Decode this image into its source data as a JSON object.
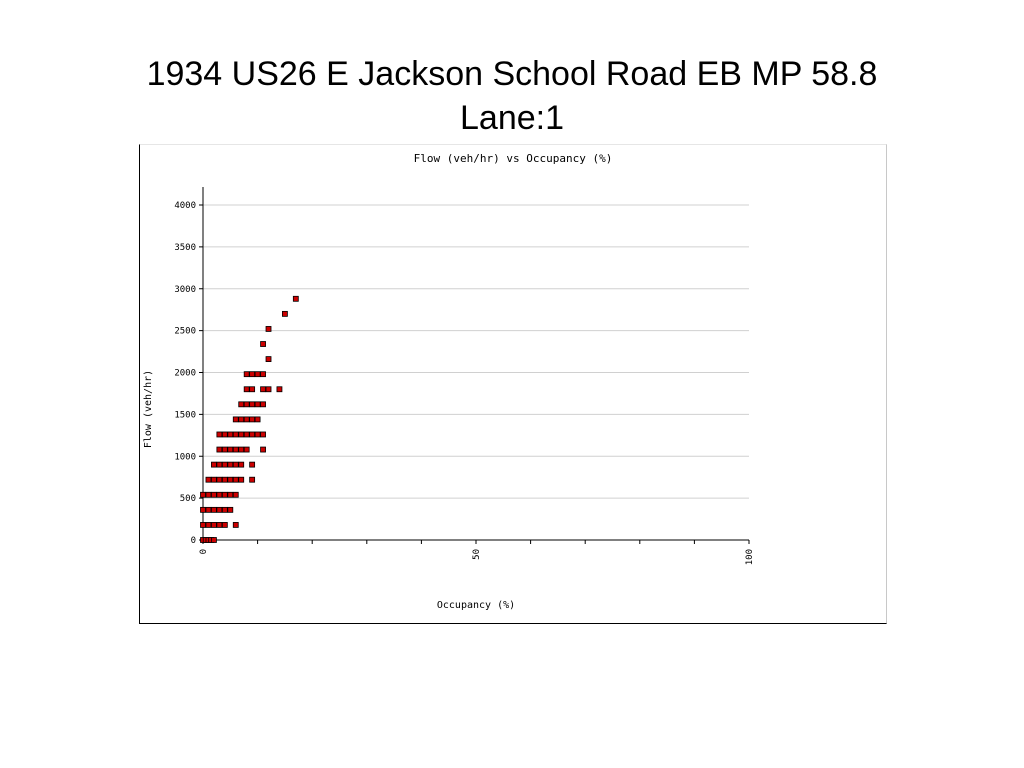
{
  "slide": {
    "title_line1": "1934  US26 E  Jackson School Road EB  MP 58.8",
    "title_line2": "Lane:1"
  },
  "colors": {
    "marker_fill": "#cc0000",
    "marker_edge": "#000000",
    "grid": "#d0d0d0",
    "axis": "#000000"
  },
  "chart_data": {
    "type": "scatter",
    "title": "Flow (veh/hr) vs Occupancy (%)",
    "xlabel": "Occupancy (%)",
    "ylabel": "Flow (veh/hr)",
    "xlim": [
      0,
      100
    ],
    "ylim": [
      0,
      4000
    ],
    "xticks": [
      0,
      50,
      100
    ],
    "yticks": [
      0,
      500,
      1000,
      1500,
      2000,
      2500,
      3000,
      3500,
      4000
    ],
    "grid": "horizontal",
    "legend": "none",
    "series": [
      {
        "points": [
          [
            0,
            0
          ],
          [
            0.5,
            0
          ],
          [
            1,
            0
          ],
          [
            1.5,
            0
          ],
          [
            2,
            0
          ],
          [
            0,
            180
          ],
          [
            1,
            180
          ],
          [
            2,
            180
          ],
          [
            3,
            180
          ],
          [
            4,
            180
          ],
          [
            6,
            180
          ],
          [
            0,
            360
          ],
          [
            1,
            360
          ],
          [
            2,
            360
          ],
          [
            3,
            360
          ],
          [
            4,
            360
          ],
          [
            5,
            360
          ],
          [
            0,
            540
          ],
          [
            1,
            540
          ],
          [
            2,
            540
          ],
          [
            3,
            540
          ],
          [
            4,
            540
          ],
          [
            5,
            540
          ],
          [
            6,
            540
          ],
          [
            1,
            720
          ],
          [
            2,
            720
          ],
          [
            3,
            720
          ],
          [
            4,
            720
          ],
          [
            5,
            720
          ],
          [
            6,
            720
          ],
          [
            7,
            720
          ],
          [
            9,
            720
          ],
          [
            2,
            900
          ],
          [
            3,
            900
          ],
          [
            4,
            900
          ],
          [
            5,
            900
          ],
          [
            6,
            900
          ],
          [
            7,
            900
          ],
          [
            9,
            900
          ],
          [
            3,
            1080
          ],
          [
            4,
            1080
          ],
          [
            5,
            1080
          ],
          [
            6,
            1080
          ],
          [
            7,
            1080
          ],
          [
            8,
            1080
          ],
          [
            11,
            1080
          ],
          [
            3,
            1260
          ],
          [
            4,
            1260
          ],
          [
            5,
            1260
          ],
          [
            6,
            1260
          ],
          [
            7,
            1260
          ],
          [
            8,
            1260
          ],
          [
            9,
            1260
          ],
          [
            10,
            1260
          ],
          [
            11,
            1260
          ],
          [
            6,
            1440
          ],
          [
            7,
            1440
          ],
          [
            8,
            1440
          ],
          [
            9,
            1440
          ],
          [
            10,
            1440
          ],
          [
            7,
            1620
          ],
          [
            8,
            1620
          ],
          [
            9,
            1620
          ],
          [
            10,
            1620
          ],
          [
            11,
            1620
          ],
          [
            8,
            1800
          ],
          [
            9,
            1800
          ],
          [
            11,
            1800
          ],
          [
            12,
            1800
          ],
          [
            14,
            1800
          ],
          [
            8,
            1980
          ],
          [
            9,
            1980
          ],
          [
            10,
            1980
          ],
          [
            11,
            1980
          ],
          [
            12,
            2160
          ],
          [
            11,
            2340
          ],
          [
            12,
            2520
          ],
          [
            15,
            2700
          ],
          [
            17,
            2880
          ]
        ]
      }
    ]
  }
}
